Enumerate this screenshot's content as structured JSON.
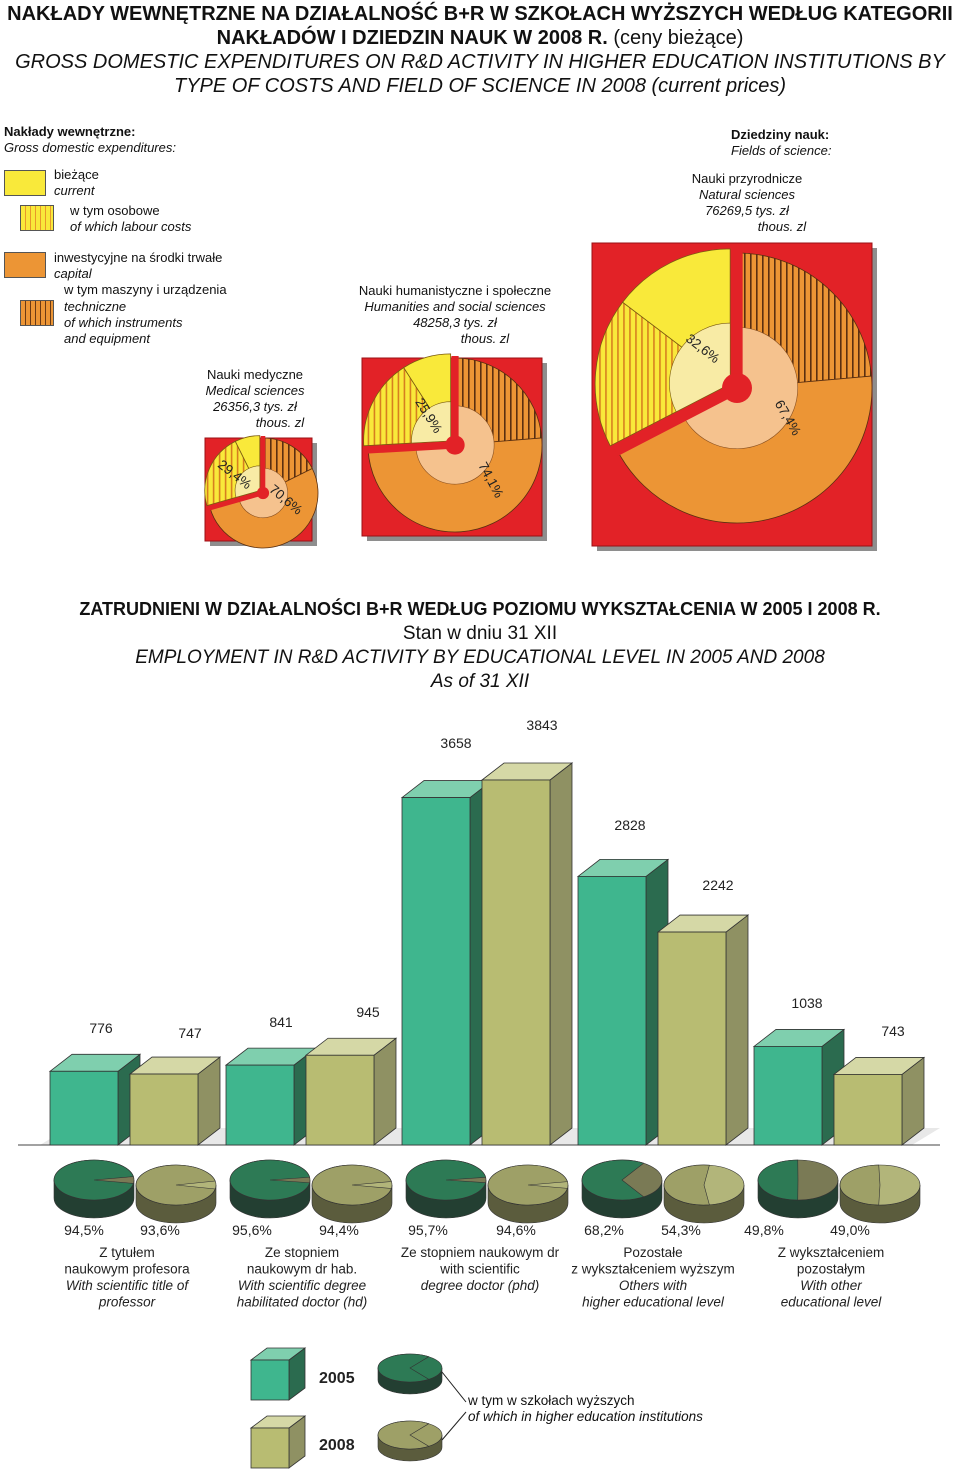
{
  "section1": {
    "title_pl_bold": "NAKŁADY WEWNĘTRZNE NA DZIAŁALNOŚĆ B+R W SZKOŁACH WYŻSZYCH WEDŁUG KATEGORII NAKŁADÓW I DZIEDZIN NAUK W 2008 R.",
    "title_pl_normal": "(ceny bieżące)",
    "title_en": "GROSS DOMESTIC EXPENDITURES ON R&D ACTIVITY IN HIGHER EDUCATION INSTITUTIONS BY TYPE OF COSTS AND FIELD OF SCIENCE IN 2008 (current prices)",
    "legend": {
      "header_pl": "Nakłady wewnętrzne:",
      "header_en": "Gross domestic expenditures:",
      "current_pl": "bieżące",
      "current_en": "current",
      "labour_pl": "w tym osobowe",
      "labour_en": "of which labour costs",
      "capital_pl": "inwestycyjne na środki trwałe",
      "capital_en": "capital",
      "equip_pl1": "w tym maszyny i urządzenia",
      "equip_pl2": "techniczne",
      "equip_en1": "of which instruments",
      "equip_en2": "and equipment"
    },
    "fields_header_pl": "Dziedziny nauk:",
    "fields_header_en": "Fields of science:",
    "colors": {
      "background_red": "#e22227",
      "current_yellow": "#f9e93a",
      "capital_orange": "#ec9535",
      "labour_hatch": "#f2a531"
    }
  },
  "chart_data": [
    {
      "type": "pie",
      "name": "Nauki medyczne",
      "label_pl": "Nauki medyczne",
      "label_en": "Medical sciences",
      "value_text": "26356,3 tys. zł",
      "unit_en": "thous. zl",
      "slices": [
        {
          "category": "current",
          "percent": 29.4,
          "label": "29,4%",
          "of_which_labour_share": 0.75
        },
        {
          "category": "capital",
          "percent": 70.6,
          "label": "70,6%",
          "of_which_equipment_share": 0.25
        }
      ]
    },
    {
      "type": "pie",
      "name": "Nauki humanistyczne i społeczne",
      "label_pl": "Nauki humanistyczne i społeczne",
      "label_en": "Humanities and social sciences",
      "value_text": "48258,3 tys. zł",
      "unit_en": "thous. zl",
      "slices": [
        {
          "category": "current",
          "percent": 25.9,
          "label": "25,9%",
          "of_which_labour_share": 0.65
        },
        {
          "category": "capital",
          "percent": 74.1,
          "label": "74,1%",
          "of_which_equipment_share": 0.32
        }
      ]
    },
    {
      "type": "pie",
      "name": "Nauki przyrodnicze",
      "label_pl": "Nauki przyrodnicze",
      "label_en": "Natural sciences",
      "value_text": "76269,5 tys. zł",
      "unit_en": "thous. zl",
      "slices": [
        {
          "category": "current",
          "percent": 32.6,
          "label": "32,6%",
          "of_which_labour_share": 0.55
        },
        {
          "category": "capital",
          "percent": 67.4,
          "label": "67,4%",
          "of_which_equipment_share": 0.35
        }
      ]
    },
    {
      "type": "bar",
      "title_pl": "ZATRUDNIENI W DZIAŁALNOŚCI B+R WEDŁUG POZIOMU WYKSZTAŁCENIA W 2005 I 2008 R.",
      "subtitle_pl": "Stan w dniu 31 XII",
      "title_en": "EMPLOYMENT IN R&D ACTIVITY BY EDUCATIONAL LEVEL IN 2005 AND 2008",
      "subtitle_en": "As of 31 XII",
      "categories": [
        {
          "pl": [
            "Z tytułem",
            "naukowym profesora"
          ],
          "en": [
            "With scientific title of",
            "professor"
          ]
        },
        {
          "pl": [
            "Ze stopniem",
            "naukowym dr hab."
          ],
          "en": [
            "With scientific degree",
            "habilitated doctor (hd)"
          ]
        },
        {
          "pl": [
            "Ze stopniem naukowym dr",
            "with scientific"
          ],
          "en": [
            "degree doctor (phd)"
          ]
        },
        {
          "pl": [
            "Pozostałe",
            "z wykształceniem wyższym"
          ],
          "en": [
            "Others with",
            "higher educational level"
          ]
        },
        {
          "pl": [
            "Z wykształceniem",
            "pozostałym"
          ],
          "en": [
            "With other",
            "educational level"
          ]
        }
      ],
      "series": [
        {
          "name": "2005",
          "values": [
            776,
            841,
            3658,
            2828,
            1038
          ],
          "color": "#3fb68e"
        },
        {
          "name": "2008",
          "values": [
            747,
            945,
            3843,
            2242,
            743
          ],
          "color": "#b8bc72"
        }
      ],
      "higher_education_share": {
        "2005": [
          "94,5%",
          "95,6%",
          "95,7%",
          "68,2%",
          "49,8%"
        ],
        "2008": [
          "93,6%",
          "94,4%",
          "94,6%",
          "54,3%",
          "49,0%"
        ],
        "2005_values": [
          94.5,
          95.6,
          95.7,
          68.2,
          49.8
        ],
        "2008_values": [
          93.6,
          94.4,
          94.6,
          54.3,
          49.0
        ]
      },
      "legend": {
        "year1": "2005",
        "year2": "2008",
        "pie_pl": "w tym w szkołach wyższych",
        "pie_en": "of which in higher education institutions"
      }
    }
  ]
}
